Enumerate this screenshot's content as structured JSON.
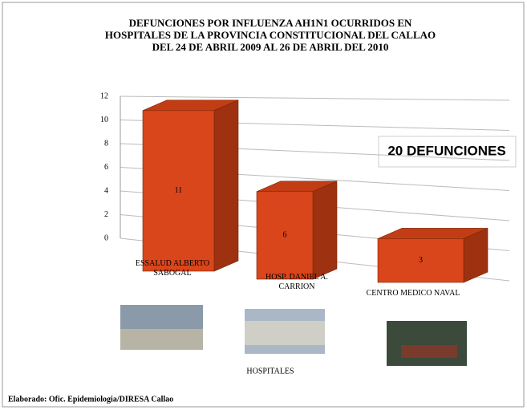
{
  "chart_data": {
    "type": "bar3d",
    "title": [
      "DEFUNCIONES  POR INFLUENZA AH1N1 OCURRIDOS EN",
      "HOSPITALES DE LA PROVINCIA CONSTITUCIONAL DEL CALLAO",
      "DEL 24 DE ABRIL 2009 AL 26 DE ABRIL DEL 2010"
    ],
    "categories": [
      "ESSALUD ALBERTO SABOGAL",
      "HOSP. DANIEL A. CARRION",
      "CENTRO MEDICO NAVAL"
    ],
    "values": [
      11,
      6,
      3
    ],
    "color": "#d9461c",
    "ylim": [
      0,
      12
    ],
    "yticks": [
      0,
      2,
      4,
      6,
      8,
      10,
      12
    ],
    "grid": true,
    "xlabel": "HOSPITALES",
    "annotation": "20 DEFUNCIONES",
    "footer": "Elaborado: Ofic. Epidemiologia/DIRESA Callao"
  }
}
